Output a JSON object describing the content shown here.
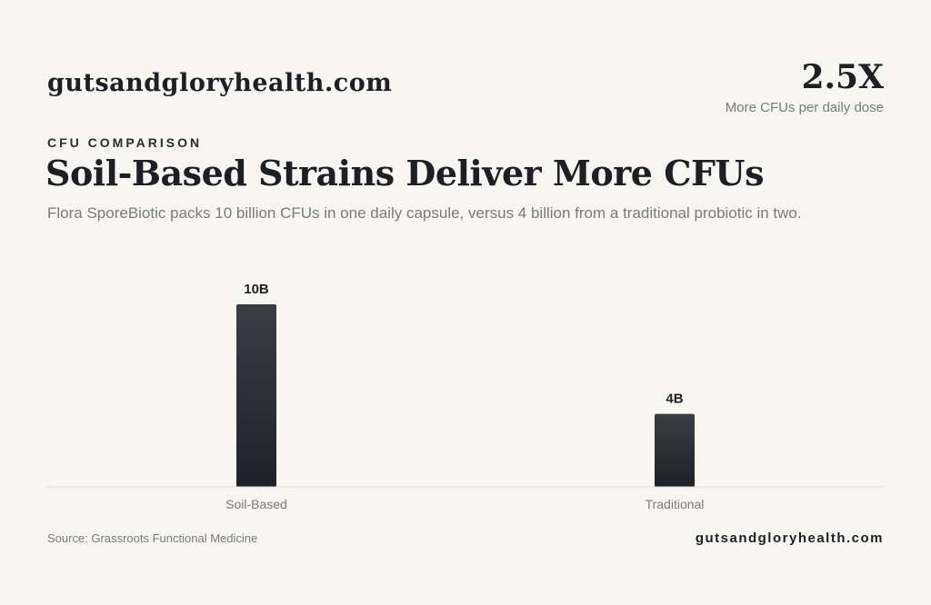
{
  "header": {
    "brand": "gutsandgloryhealth.com",
    "stat_value": "2.5X",
    "stat_label": "More CFUs per daily dose"
  },
  "eyebrow": "CFU COMPARISON",
  "title": "Soil-Based Strains Deliver More CFUs",
  "subtitle": "Flora SporeBiotic packs 10 billion CFUs in one daily capsule, versus 4 billion from a traditional probiotic in two.",
  "chart_data": {
    "type": "bar",
    "categories": [
      "Soil-Based",
      "Traditional"
    ],
    "values": [
      10,
      4
    ],
    "data_labels": [
      "10B",
      "4B"
    ],
    "ylim": [
      0,
      10
    ],
    "grid": false,
    "legend": "none"
  },
  "colors": {
    "bar_top": "#3a3d44",
    "bar_bottom": "#1f2228",
    "axis_line": "#e2ded6"
  },
  "footer": {
    "source": "Source: Grassroots Functional Medicine",
    "brand": "gutsandgloryhealth.com"
  }
}
